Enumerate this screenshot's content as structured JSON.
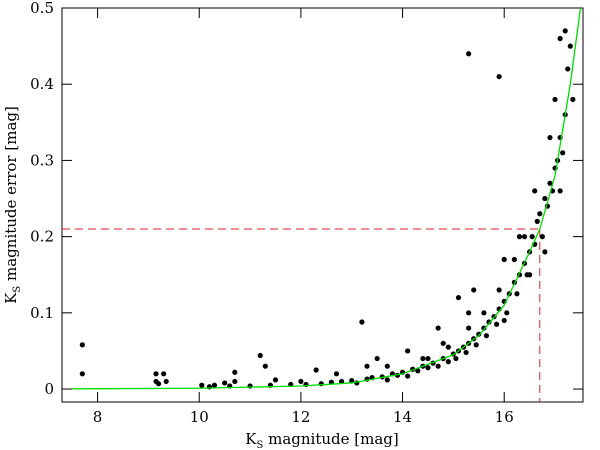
{
  "chart_data": {
    "type": "scatter",
    "x_label": {
      "main": "K",
      "sub": "S",
      "rest": " magnitude [mag]"
    },
    "y_label": {
      "main": "K",
      "sub": "S",
      "rest": " magnitude error [mag]"
    },
    "xlim": [
      7.3,
      17.55
    ],
    "ylim": [
      -0.017,
      0.5
    ],
    "xticks": [
      8,
      10,
      12,
      14,
      16
    ],
    "yticks": [
      0,
      0.1,
      0.2,
      0.3,
      0.4,
      0.5
    ],
    "points": {
      "color": "#000000",
      "x": [
        7.7,
        7.7,
        9.15,
        9.15,
        9.2,
        9.3,
        9.35,
        10.05,
        10.3,
        10.5,
        10.7,
        10.7,
        11.2,
        11.3,
        11.5,
        12.0,
        12.3,
        12.7,
        13.2,
        13.3,
        13.5,
        13.7,
        14.1,
        14.4,
        14.7,
        14.8,
        15.1,
        15.3,
        15.3,
        15.4,
        15.9,
        16.0,
        16.3,
        10.2,
        10.6,
        11.0,
        11.4,
        11.8,
        12.1,
        12.4,
        12.6,
        12.8,
        13.0,
        13.1,
        13.3,
        13.4,
        13.6,
        13.7,
        13.8,
        13.9,
        14.0,
        14.1,
        14.2,
        14.3,
        14.4,
        14.5,
        14.6,
        14.7,
        14.8,
        14.9,
        15.0,
        15.05,
        15.1,
        15.2,
        15.25,
        15.3,
        15.4,
        15.45,
        15.5,
        15.6,
        15.65,
        15.7,
        15.8,
        15.85,
        15.9,
        16.0,
        16.05,
        16.1,
        16.2,
        16.25,
        16.3,
        16.4,
        16.45,
        16.5,
        16.55,
        16.6,
        16.65,
        16.7,
        16.75,
        16.8,
        16.85,
        16.9,
        16.95,
        17.0,
        17.05,
        17.1,
        17.15,
        17.2,
        17.25,
        17.3,
        17.35,
        17.1,
        17.2,
        17.0,
        16.9,
        16.6,
        16.4,
        16.2,
        15.9,
        15.6,
        15.3,
        14.9,
        14.5,
        16.8,
        17.1,
        16.5,
        16.0
      ],
      "y": [
        0.058,
        0.02,
        0.02,
        0.01,
        0.007,
        0.02,
        0.01,
        0.005,
        0.005,
        0.008,
        0.01,
        0.022,
        0.044,
        0.03,
        0.012,
        0.01,
        0.025,
        0.02,
        0.088,
        0.03,
        0.04,
        0.03,
        0.05,
        0.04,
        0.08,
        0.06,
        0.12,
        0.44,
        0.1,
        0.13,
        0.41,
        0.17,
        0.2,
        0.003,
        0.004,
        0.004,
        0.005,
        0.006,
        0.006,
        0.007,
        0.009,
        0.01,
        0.011,
        0.008,
        0.013,
        0.015,
        0.016,
        0.012,
        0.02,
        0.018,
        0.022,
        0.017,
        0.026,
        0.024,
        0.03,
        0.028,
        0.034,
        0.03,
        0.04,
        0.036,
        0.046,
        0.04,
        0.05,
        0.055,
        0.048,
        0.06,
        0.066,
        0.058,
        0.072,
        0.08,
        0.07,
        0.088,
        0.095,
        0.085,
        0.105,
        0.115,
        0.1,
        0.125,
        0.14,
        0.125,
        0.15,
        0.165,
        0.15,
        0.18,
        0.2,
        0.19,
        0.22,
        0.23,
        0.2,
        0.25,
        0.24,
        0.27,
        0.26,
        0.29,
        0.3,
        0.33,
        0.31,
        0.36,
        0.42,
        0.45,
        0.38,
        0.46,
        0.47,
        0.38,
        0.33,
        0.26,
        0.2,
        0.17,
        0.13,
        0.1,
        0.08,
        0.055,
        0.04,
        0.18,
        0.26,
        0.15,
        0.09
      ]
    },
    "fit": {
      "color": "#00dd00",
      "x": [
        7.5,
        10,
        12,
        13,
        14,
        15,
        15.5,
        16,
        16.5,
        16.7,
        17,
        17.3,
        17.5
      ],
      "y": [
        0.0003,
        0.001,
        0.004,
        0.008,
        0.02,
        0.045,
        0.07,
        0.11,
        0.18,
        0.21,
        0.28,
        0.4,
        0.5
      ]
    },
    "limit": {
      "color": "#dd2222",
      "x": 16.7,
      "y": 0.21
    }
  }
}
